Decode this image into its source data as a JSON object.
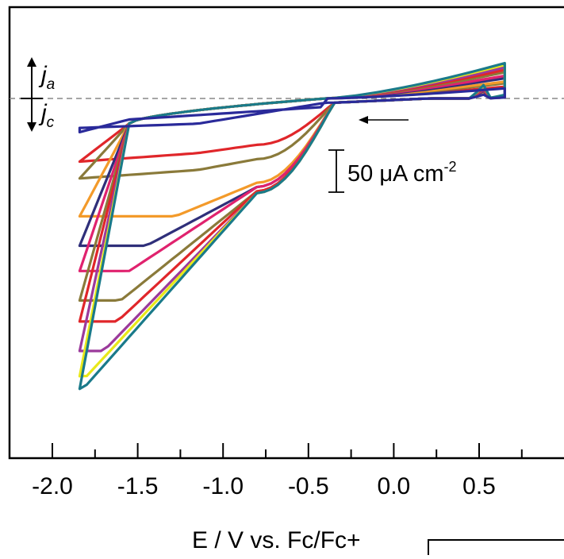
{
  "chart_data": {
    "type": "line",
    "title": "",
    "xlabel": "E / V vs. Fc/Fc+",
    "ylabel": "",
    "xlim": [
      -2.3,
      0.95
    ],
    "x_ticks": [
      -2.0,
      -1.5,
      -1.0,
      -0.5,
      0.0,
      0.5
    ],
    "x_tick_labels": [
      "-2.0",
      "-1.5",
      "-1.0",
      "-0.5",
      "0.0",
      "0.5"
    ],
    "grid": false,
    "legend": "none",
    "zero_line": true,
    "scale_bar_label": "50 μA cm",
    "scale_bar_exponent": "-2",
    "scale_bar_value_uA_cm2": 50,
    "anodic_label": "j",
    "anodic_subscript": "a",
    "cathodic_label": "j",
    "cathodic_subscript": "c",
    "scan_direction": "negative",
    "series": [
      {
        "color": "#e0262a",
        "min_j": -75,
        "peak1_E": -1.15,
        "peak1_j": -65,
        "peak2_E": -0.8,
        "peak2_j": -55,
        "top_j": 14
      },
      {
        "color": "#8a7a3a",
        "min_j": -95,
        "peak1_E": -1.15,
        "peak1_j": -85,
        "peak2_E": -0.8,
        "peak2_j": -72,
        "top_j": 18
      },
      {
        "color": "#f39a2a",
        "min_j": -140,
        "peak1_E": -1.28,
        "peak1_j": -140,
        "peak2_E": -0.8,
        "peak2_j": -100,
        "top_j": 20
      },
      {
        "color": "#2f2f7a",
        "min_j": -175,
        "peak1_E": -1.45,
        "peak1_j": -175,
        "peak2_E": -0.8,
        "peak2_j": -105,
        "top_j": 24
      },
      {
        "color": "#e0226e",
        "min_j": -205,
        "peak1_E": -1.55,
        "peak1_j": -205,
        "peak2_E": -0.8,
        "peak2_j": -105,
        "top_j": 27
      },
      {
        "color": "#8a7a3a",
        "min_j": -240,
        "peak1_E": -1.6,
        "peak1_j": -240,
        "peak2_E": -0.8,
        "peak2_j": -110,
        "top_j": 31
      },
      {
        "color": "#e0262a",
        "min_j": -265,
        "peak1_E": -1.62,
        "peak1_j": -265,
        "peak2_E": -0.8,
        "peak2_j": -110,
        "top_j": 34
      },
      {
        "color": "#9b3a9b",
        "min_j": -300,
        "peak1_E": -1.7,
        "peak1_j": -300,
        "peak2_E": -0.8,
        "peak2_j": -112,
        "top_j": 37
      },
      {
        "color": "#e8e81a",
        "min_j": -330,
        "peak1_E": -1.8,
        "peak1_j": -330,
        "peak2_E": -0.8,
        "peak2_j": -112,
        "top_j": 40
      },
      {
        "color": "#1a7a8a",
        "min_j": -345,
        "peak1_E": -1.82,
        "peak1_j": -345,
        "peak2_E": -0.8,
        "peak2_j": -112,
        "top_j": 42
      },
      {
        "color": "#2a2a9a",
        "min_j": -35,
        "peak1_E": -1.15,
        "peak1_j": -30,
        "peak2_E": -0.4,
        "peak2_j": -5,
        "top_j": 12
      }
    ]
  }
}
